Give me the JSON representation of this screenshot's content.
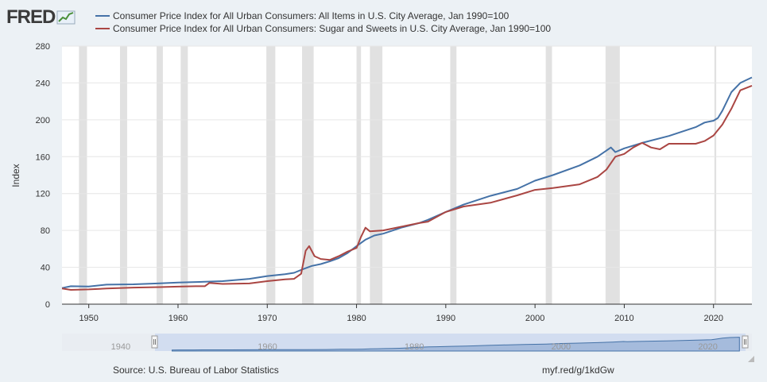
{
  "logo": {
    "text": "FRED"
  },
  "colors": {
    "series1": "#4572a7",
    "series2": "#aa4643",
    "recession": "#e1e1e1",
    "navigator_fill": "#d2ddf0"
  },
  "chart_data": {
    "type": "line",
    "title": "",
    "xlabel": "",
    "ylabel": "Index",
    "xlim": [
      1947,
      2024.3
    ],
    "ylim": [
      0,
      280
    ],
    "grid": true,
    "legend": "top-left",
    "x_ticks": [
      1950,
      1960,
      1970,
      1980,
      1990,
      2000,
      2010,
      2020
    ],
    "y_ticks": [
      0,
      40,
      80,
      120,
      160,
      200,
      240,
      280
    ],
    "recessions": [
      [
        1948.9,
        1949.8
      ],
      [
        1953.5,
        1954.3
      ],
      [
        1957.6,
        1958.3
      ],
      [
        1960.3,
        1961.1
      ],
      [
        1969.9,
        1970.9
      ],
      [
        1973.9,
        1975.2
      ],
      [
        1980.0,
        1980.5
      ],
      [
        1981.5,
        1982.9
      ],
      [
        1990.5,
        1991.2
      ],
      [
        2001.2,
        2001.9
      ],
      [
        2007.9,
        2009.5
      ],
      [
        2020.1,
        2020.3
      ]
    ],
    "series": [
      {
        "name": "Consumer Price Index for All Urban Consumers: All Items in U.S. City Average, Jan 1990=100",
        "x": [
          1947,
          1948,
          1950,
          1952,
          1955,
          1958,
          1960,
          1962,
          1965,
          1968,
          1970,
          1972,
          1973,
          1974,
          1975,
          1976,
          1977,
          1978,
          1979,
          1980,
          1981,
          1982,
          1983,
          1985,
          1987,
          1988,
          1990,
          1992,
          1995,
          1998,
          2000,
          2002,
          2005,
          2007,
          2008.5,
          2009,
          2010,
          2012,
          2015,
          2018,
          2019,
          2020,
          2020.5,
          2021,
          2022,
          2023,
          2024.3
        ],
        "values": [
          17.5,
          19.5,
          19.2,
          21.2,
          21.5,
          22.6,
          23.5,
          24.0,
          25.0,
          27.5,
          30.5,
          32.5,
          34.0,
          38.0,
          41.5,
          43.5,
          46.5,
          50.0,
          55.5,
          63.0,
          70.0,
          74.5,
          76.5,
          83.0,
          88.0,
          91.5,
          100,
          108,
          117.5,
          125,
          134,
          140,
          150.5,
          160,
          170,
          165,
          169,
          175,
          182.5,
          192,
          197,
          199,
          202,
          210,
          230,
          240,
          246
        ]
      },
      {
        "name": "Consumer Price Index for All Urban Consumers: Sugar and Sweets in U.S. City Average, Jan 1990=100",
        "x": [
          1947,
          1948,
          1950,
          1952,
          1955,
          1958,
          1960,
          1962,
          1963,
          1963.5,
          1965,
          1968,
          1970,
          1972,
          1973,
          1973.8,
          1974.3,
          1974.7,
          1975.3,
          1976,
          1977,
          1978,
          1979,
          1980,
          1980.5,
          1981,
          1981.5,
          1983,
          1985,
          1987,
          1988,
          1990,
          1992,
          1995,
          1998,
          2000,
          2002,
          2005,
          2007,
          2008,
          2009,
          2010,
          2011,
          2012,
          2013,
          2014,
          2015,
          2016,
          2018,
          2019,
          2020,
          2021,
          2022,
          2023,
          2024.3
        ],
        "values": [
          17,
          15.5,
          16,
          17,
          18,
          18.5,
          19,
          19.5,
          19.5,
          23,
          22,
          22.5,
          25,
          27,
          27.5,
          33,
          58,
          63,
          52,
          49,
          48,
          52,
          57,
          61,
          73,
          83,
          79,
          80,
          84,
          88,
          89.5,
          100,
          106,
          110,
          118,
          124,
          126,
          130,
          138,
          146,
          160,
          163,
          170,
          175,
          170,
          168,
          174,
          174,
          174,
          177,
          183,
          195,
          212,
          232,
          237
        ]
      }
    ]
  },
  "navigator": {
    "tick_labels": [
      "1940",
      "1960",
      "1980",
      "2000",
      "2020"
    ],
    "range": [
      1947,
      2024.3
    ]
  },
  "footer": {
    "source": "Source: U.S. Bureau of Labor Statistics",
    "url": "myf.red/g/1kdGw"
  }
}
